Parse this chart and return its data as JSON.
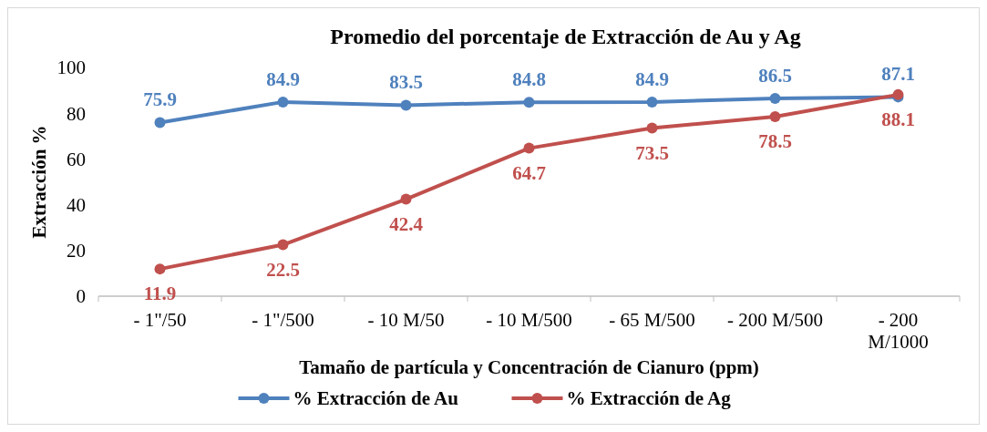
{
  "chart_data": {
    "type": "line",
    "title": "Promedio del porcentaje de Extracción de Au y Ag",
    "xlabel": "Tamaño de partícula y Concentración de Cianuro (ppm)",
    "ylabel": "Extracción %",
    "categories": [
      "- 1\"/50",
      "- 1\"/500",
      "- 10 M/50",
      "- 10 M/500",
      "- 65 M/500",
      "- 200 M/500",
      "- 200 M/1000"
    ],
    "series": [
      {
        "name": "% Extracción de Au",
        "color": "#4f81bd",
        "values": [
          75.9,
          84.9,
          83.5,
          84.8,
          84.9,
          86.5,
          87.1
        ]
      },
      {
        "name": "% Extracción de Ag",
        "color": "#c0504d",
        "values": [
          11.9,
          22.5,
          42.4,
          64.7,
          73.5,
          78.5,
          88.1
        ]
      }
    ],
    "ylim": [
      0,
      100
    ],
    "yticks": [
      0,
      20,
      40,
      60,
      80,
      100
    ],
    "grid": false,
    "legend": "bottom",
    "marker": "circle",
    "line_style": "solid",
    "data_labels": true
  }
}
